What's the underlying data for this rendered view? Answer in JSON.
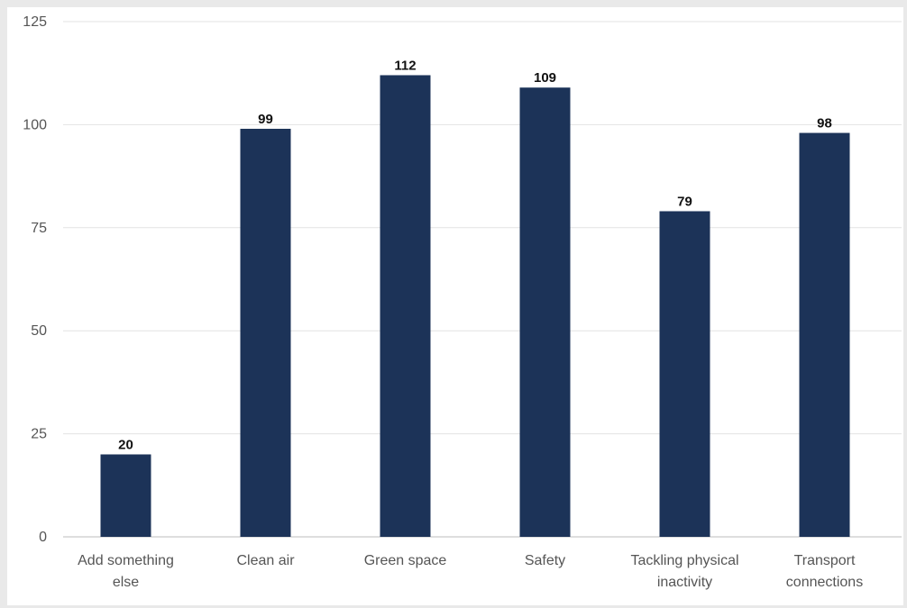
{
  "chart_data": {
    "type": "bar",
    "title": "",
    "xlabel": "",
    "ylabel": "",
    "categories": [
      [
        "Add something",
        "else"
      ],
      [
        "Clean air"
      ],
      [
        "Green space"
      ],
      [
        "Safety"
      ],
      [
        "Tackling physical",
        "inactivity"
      ],
      [
        "Transport",
        "connections"
      ]
    ],
    "values": [
      20,
      99,
      112,
      109,
      79,
      98
    ],
    "data_labels": [
      "20",
      "99",
      "112",
      "109",
      "79",
      "98"
    ],
    "ylim": [
      0,
      125
    ],
    "yticks": [
      0,
      25,
      50,
      75,
      100,
      125
    ],
    "grid": true,
    "legend": "none",
    "bar_color": "#1c3358"
  }
}
